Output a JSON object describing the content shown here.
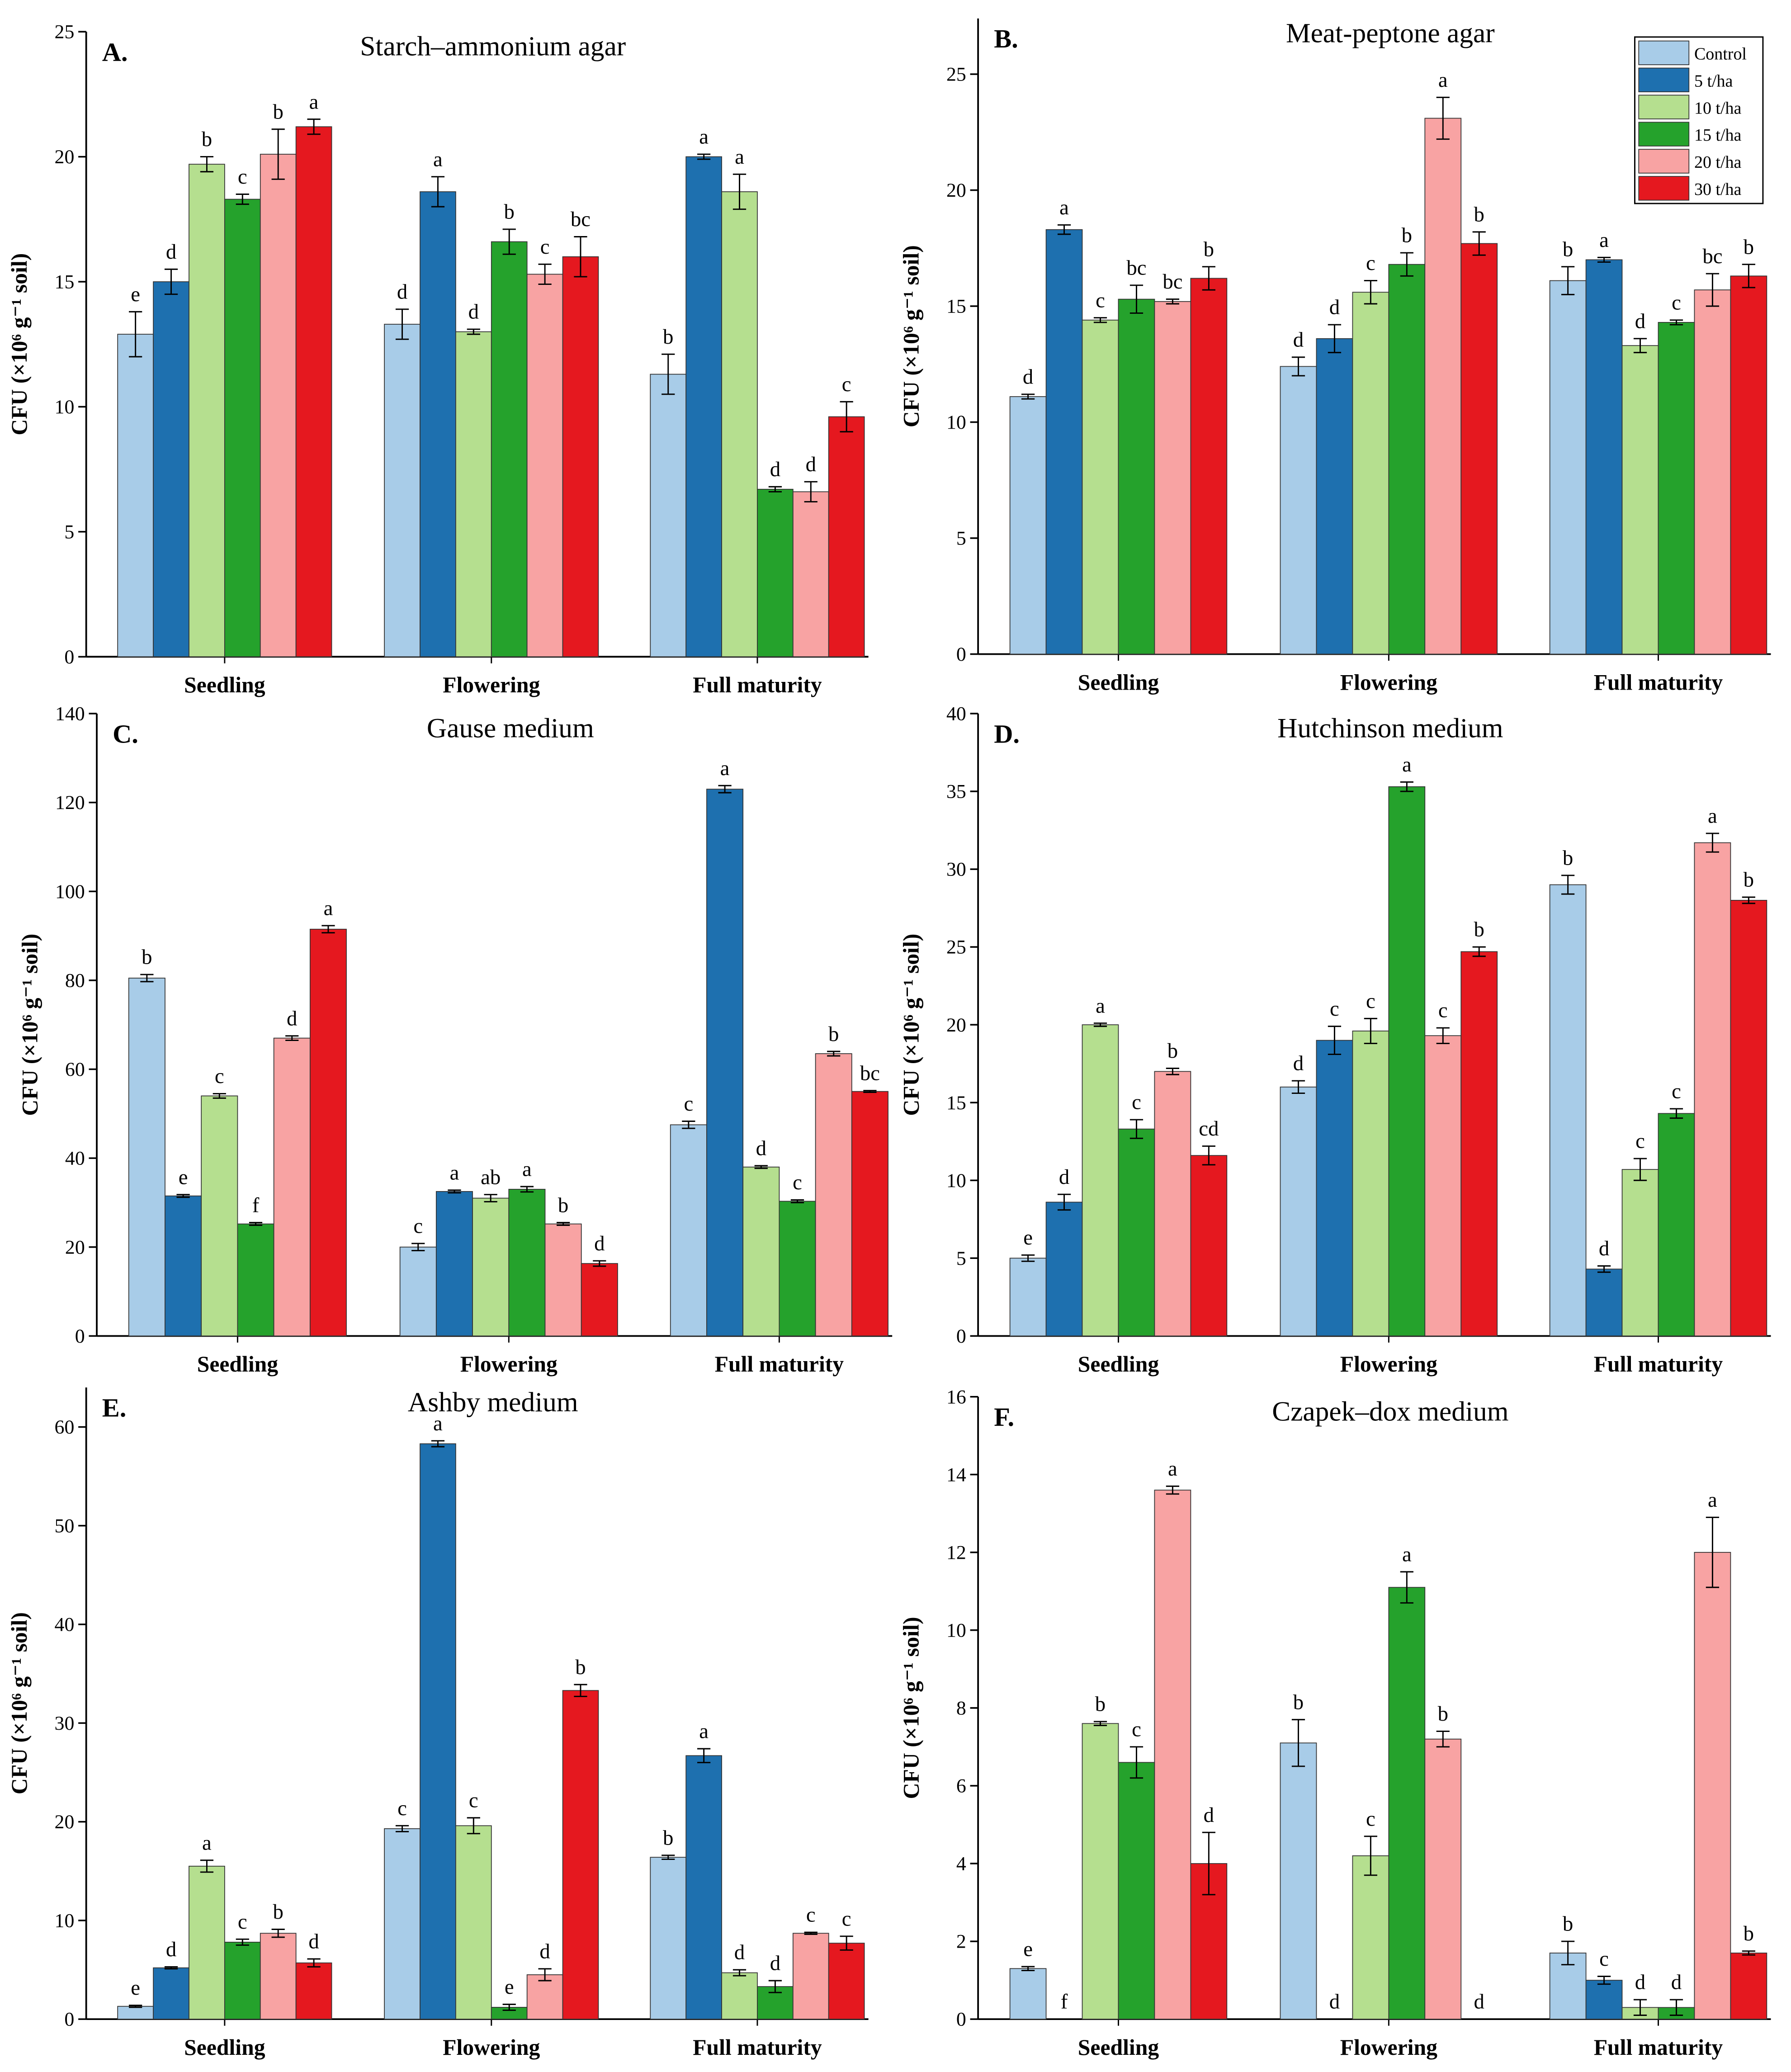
{
  "chart_data": [
    {
      "type": "bar",
      "letter": "A.",
      "title": "Starch–ammonium agar",
      "ylabel": "CFU (×10⁶ g⁻¹ soil)",
      "ylim": [
        0,
        25
      ],
      "yticks": [
        0,
        5,
        10,
        15,
        20,
        25
      ],
      "categories": [
        "Seedling",
        "Flowering",
        "Full maturity"
      ],
      "series": [
        {
          "name": "Control",
          "values": [
            12.9,
            13.3,
            11.3
          ],
          "errors": [
            0.9,
            0.6,
            0.8
          ],
          "letters": [
            "e",
            "d",
            "b"
          ]
        },
        {
          "name": "5 t/ha",
          "values": [
            15.0,
            18.6,
            20.0
          ],
          "errors": [
            0.5,
            0.6,
            0.1
          ],
          "letters": [
            "d",
            "a",
            "a"
          ]
        },
        {
          "name": "10 t/ha",
          "values": [
            19.7,
            13.0,
            18.6
          ],
          "errors": [
            0.3,
            0.1,
            0.7
          ],
          "letters": [
            "b",
            "d",
            "a"
          ]
        },
        {
          "name": "15 t/ha",
          "values": [
            18.3,
            16.6,
            6.7
          ],
          "errors": [
            0.2,
            0.5,
            0.1
          ],
          "letters": [
            "c",
            "b",
            "d"
          ]
        },
        {
          "name": "20 t/ha",
          "values": [
            20.1,
            15.3,
            6.6
          ],
          "errors": [
            1.0,
            0.4,
            0.4
          ],
          "letters": [
            "b",
            "c",
            "d"
          ]
        },
        {
          "name": "30 t/ha",
          "values": [
            21.2,
            16.0,
            9.6
          ],
          "errors": [
            0.3,
            0.8,
            0.6
          ],
          "letters": [
            "a",
            "bc",
            "c"
          ]
        }
      ]
    },
    {
      "type": "bar",
      "letter": "B.",
      "title": "Meat-peptone agar",
      "ylabel": "CFU (×10⁶ g⁻¹ soil)",
      "ylim": [
        0,
        27.4
      ],
      "yticks": [
        0,
        5,
        10,
        15,
        20,
        25
      ],
      "categories": [
        "Seedling",
        "Flowering",
        "Full maturity"
      ],
      "series": [
        {
          "name": "Control",
          "values": [
            11.1,
            12.4,
            16.1
          ],
          "errors": [
            0.1,
            0.4,
            0.6
          ],
          "letters": [
            "d",
            "d",
            "b"
          ]
        },
        {
          "name": "5 t/ha",
          "values": [
            18.3,
            13.6,
            17.0
          ],
          "errors": [
            0.2,
            0.6,
            0.1
          ],
          "letters": [
            "a",
            "d",
            "a"
          ]
        },
        {
          "name": "10 t/ha",
          "values": [
            14.4,
            15.6,
            13.3
          ],
          "errors": [
            0.1,
            0.5,
            0.3
          ],
          "letters": [
            "c",
            "c",
            "d"
          ]
        },
        {
          "name": "15 t/ha",
          "values": [
            15.3,
            16.8,
            14.3
          ],
          "errors": [
            0.6,
            0.5,
            0.1
          ],
          "letters": [
            "bc",
            "b",
            "c"
          ]
        },
        {
          "name": "20 t/ha",
          "values": [
            15.2,
            23.1,
            15.7
          ],
          "errors": [
            0.1,
            0.9,
            0.7
          ],
          "letters": [
            "bc",
            "a",
            "bc"
          ]
        },
        {
          "name": "30 t/ha",
          "values": [
            16.2,
            17.7,
            16.3
          ],
          "errors": [
            0.5,
            0.5,
            0.5
          ],
          "letters": [
            "b",
            "b",
            "b"
          ]
        }
      ],
      "legend_position": "top-right"
    },
    {
      "type": "bar",
      "letter": "C.",
      "title": "Gause medium",
      "ylabel": "CFU (×10⁶ g⁻¹ soil)",
      "ylim": [
        0,
        140
      ],
      "yticks": [
        0,
        20,
        40,
        60,
        80,
        100,
        120,
        140
      ],
      "categories": [
        "Seedling",
        "Flowering",
        "Full maturity"
      ],
      "series": [
        {
          "name": "Control",
          "values": [
            80.5,
            20.0,
            47.5
          ],
          "errors": [
            0.8,
            0.8,
            0.8
          ],
          "letters": [
            "b",
            "c",
            "c"
          ]
        },
        {
          "name": "5 t/ha",
          "values": [
            31.5,
            32.5,
            123.0
          ],
          "errors": [
            0.3,
            0.3,
            0.8
          ],
          "letters": [
            "e",
            "a",
            "a"
          ]
        },
        {
          "name": "10 t/ha",
          "values": [
            54.0,
            31.0,
            38.0
          ],
          "errors": [
            0.5,
            0.8,
            0.3
          ],
          "letters": [
            "c",
            "ab",
            "d"
          ]
        },
        {
          "name": "15 t/ha",
          "values": [
            25.2,
            33.0,
            30.3
          ],
          "errors": [
            0.3,
            0.6,
            0.3
          ],
          "letters": [
            "f",
            "a",
            "c"
          ]
        },
        {
          "name": "20 t/ha",
          "values": [
            67.0,
            25.2,
            63.5
          ],
          "errors": [
            0.5,
            0.3,
            0.5
          ],
          "letters": [
            "d",
            "b",
            "b"
          ]
        },
        {
          "name": "30 t/ha",
          "values": [
            91.5,
            16.3,
            55.0
          ],
          "errors": [
            0.8,
            0.6,
            0.2
          ],
          "letters": [
            "a",
            "d",
            "bc"
          ]
        }
      ]
    },
    {
      "type": "bar",
      "letter": "D.",
      "title": "Hutchinson medium",
      "ylabel": "CFU (×10⁶ g⁻¹ soil)",
      "ylim": [
        0,
        40
      ],
      "yticks": [
        0,
        5,
        10,
        15,
        20,
        25,
        30,
        35,
        40
      ],
      "categories": [
        "Seedling",
        "Flowering",
        "Full maturity"
      ],
      "series": [
        {
          "name": "Control",
          "values": [
            5.0,
            16.0,
            29.0
          ],
          "errors": [
            0.2,
            0.4,
            0.6
          ],
          "letters": [
            "e",
            "d",
            "b"
          ]
        },
        {
          "name": "5 t/ha",
          "values": [
            8.6,
            19.0,
            4.3
          ],
          "errors": [
            0.5,
            0.9,
            0.2
          ],
          "letters": [
            "d",
            "c",
            "d"
          ]
        },
        {
          "name": "10 t/ha",
          "values": [
            20.0,
            19.6,
            10.7
          ],
          "errors": [
            0.1,
            0.8,
            0.7
          ],
          "letters": [
            "a",
            "c",
            "c"
          ]
        },
        {
          "name": "15 t/ha",
          "values": [
            13.3,
            35.3,
            14.3
          ],
          "errors": [
            0.6,
            0.3,
            0.3
          ],
          "letters": [
            "c",
            "a",
            "c"
          ]
        },
        {
          "name": "20 t/ha",
          "values": [
            17.0,
            19.3,
            31.7
          ],
          "errors": [
            0.2,
            0.5,
            0.6
          ],
          "letters": [
            "b",
            "c",
            "a"
          ]
        },
        {
          "name": "30 t/ha",
          "values": [
            11.6,
            24.7,
            28.0
          ],
          "errors": [
            0.6,
            0.3,
            0.2
          ],
          "letters": [
            "cd",
            "b",
            "b"
          ]
        }
      ]
    },
    {
      "type": "bar",
      "letter": "E.",
      "title": "Ashby medium",
      "ylabel": "CFU (×10⁶ g⁻¹ soil)",
      "ylim": [
        0,
        64
      ],
      "yticks": [
        0,
        10,
        20,
        30,
        40,
        50,
        60
      ],
      "categories": [
        "Seedling",
        "Flowering",
        "Full maturity"
      ],
      "series": [
        {
          "name": "Control",
          "values": [
            1.3,
            19.3,
            16.4
          ],
          "errors": [
            0.1,
            0.3,
            0.2
          ],
          "letters": [
            "e",
            "c",
            "b"
          ]
        },
        {
          "name": "5 t/ha",
          "values": [
            5.2,
            58.3,
            26.7
          ],
          "errors": [
            0.1,
            0.3,
            0.7
          ],
          "letters": [
            "d",
            "a",
            "a"
          ]
        },
        {
          "name": "10 t/ha",
          "values": [
            15.5,
            19.6,
            4.7
          ],
          "errors": [
            0.6,
            0.8,
            0.3
          ],
          "letters": [
            "a",
            "c",
            "d"
          ]
        },
        {
          "name": "15 t/ha",
          "values": [
            7.8,
            1.2,
            3.3
          ],
          "errors": [
            0.3,
            0.3,
            0.6
          ],
          "letters": [
            "c",
            "e",
            "d"
          ]
        },
        {
          "name": "20 t/ha",
          "values": [
            8.7,
            4.5,
            8.7
          ],
          "errors": [
            0.4,
            0.6,
            0.1
          ],
          "letters": [
            "b",
            "d",
            "c"
          ]
        },
        {
          "name": "30 t/ha",
          "values": [
            5.7,
            33.3,
            7.7
          ],
          "errors": [
            0.4,
            0.6,
            0.7
          ],
          "letters": [
            "d",
            "b",
            "c"
          ]
        }
      ]
    },
    {
      "type": "bar",
      "letter": "F.",
      "title": "Czapek–dox medium",
      "ylabel": "CFU (×10⁶ g⁻¹ soil)",
      "ylim": [
        0,
        16
      ],
      "yticks": [
        0,
        2,
        4,
        6,
        8,
        10,
        12,
        14,
        16
      ],
      "categories": [
        "Seedling",
        "Flowering",
        "Full maturity"
      ],
      "series": [
        {
          "name": "Control",
          "values": [
            1.3,
            7.1,
            1.7
          ],
          "errors": [
            0.05,
            0.6,
            0.3
          ],
          "letters": [
            "e",
            "b",
            "b"
          ]
        },
        {
          "name": "5 t/ha",
          "values": [
            0,
            0,
            1.0
          ],
          "errors": [
            0,
            0,
            0.1
          ],
          "letters": [
            "f",
            "d",
            "c"
          ]
        },
        {
          "name": "10 t/ha",
          "values": [
            7.6,
            4.2,
            0.3
          ],
          "errors": [
            0.05,
            0.5,
            0.2
          ],
          "letters": [
            "b",
            "c",
            "d"
          ]
        },
        {
          "name": "15 t/ha",
          "values": [
            6.6,
            11.1,
            0.3
          ],
          "errors": [
            0.4,
            0.4,
            0.2
          ],
          "letters": [
            "c",
            "a",
            "d"
          ]
        },
        {
          "name": "20 t/ha",
          "values": [
            13.6,
            7.2,
            12.0
          ],
          "errors": [
            0.1,
            0.2,
            0.9
          ],
          "letters": [
            "a",
            "b",
            "a"
          ]
        },
        {
          "name": "30 t/ha",
          "values": [
            4.0,
            0,
            1.7
          ],
          "errors": [
            0.8,
            0,
            0.05
          ],
          "letters": [
            "d",
            "d",
            "b"
          ]
        }
      ]
    }
  ],
  "legend": [
    "Control",
    "5 t/ha",
    "10 t/ha",
    "15 t/ha",
    "20 t/ha",
    "30 t/ha"
  ],
  "colors": [
    "#a8cce8",
    "#1e70af",
    "#b5df8f",
    "#25a22c",
    "#f8a3a3",
    "#e5181f"
  ]
}
